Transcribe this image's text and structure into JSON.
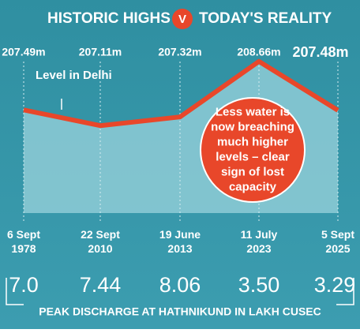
{
  "chart_data": {
    "type": "line",
    "title": "HISTORIC HIGHS",
    "badge": "V",
    "subtitle": "TODAY'S REALITY",
    "categories": [
      "6 Sept 1978",
      "22 Sept 2010",
      "19 June 2013",
      "11 July 2023",
      "5 Sept 2025"
    ],
    "series": [
      {
        "name": "Level in Delhi",
        "color": "#e8472a",
        "values": [
          207.49,
          207.11,
          207.32,
          208.66,
          207.48
        ],
        "value_labels": [
          "207.49m",
          "207.11m",
          "207.32m",
          "208.66m",
          "207.48m"
        ]
      }
    ],
    "ylim": [
      205,
      209
    ],
    "annotation": "Less water is now breaching much higher levels – clear sign of lost capacity",
    "discharge": {
      "name": "PEAK DISCHARGE AT HATHNIKUND IN LAKH CUSEC",
      "values": [
        7.0,
        7.44,
        8.06,
        3.5,
        3.29
      ],
      "value_labels": [
        "7.0",
        "7.44",
        "8.06",
        "3.50",
        "3.29"
      ]
    }
  }
}
